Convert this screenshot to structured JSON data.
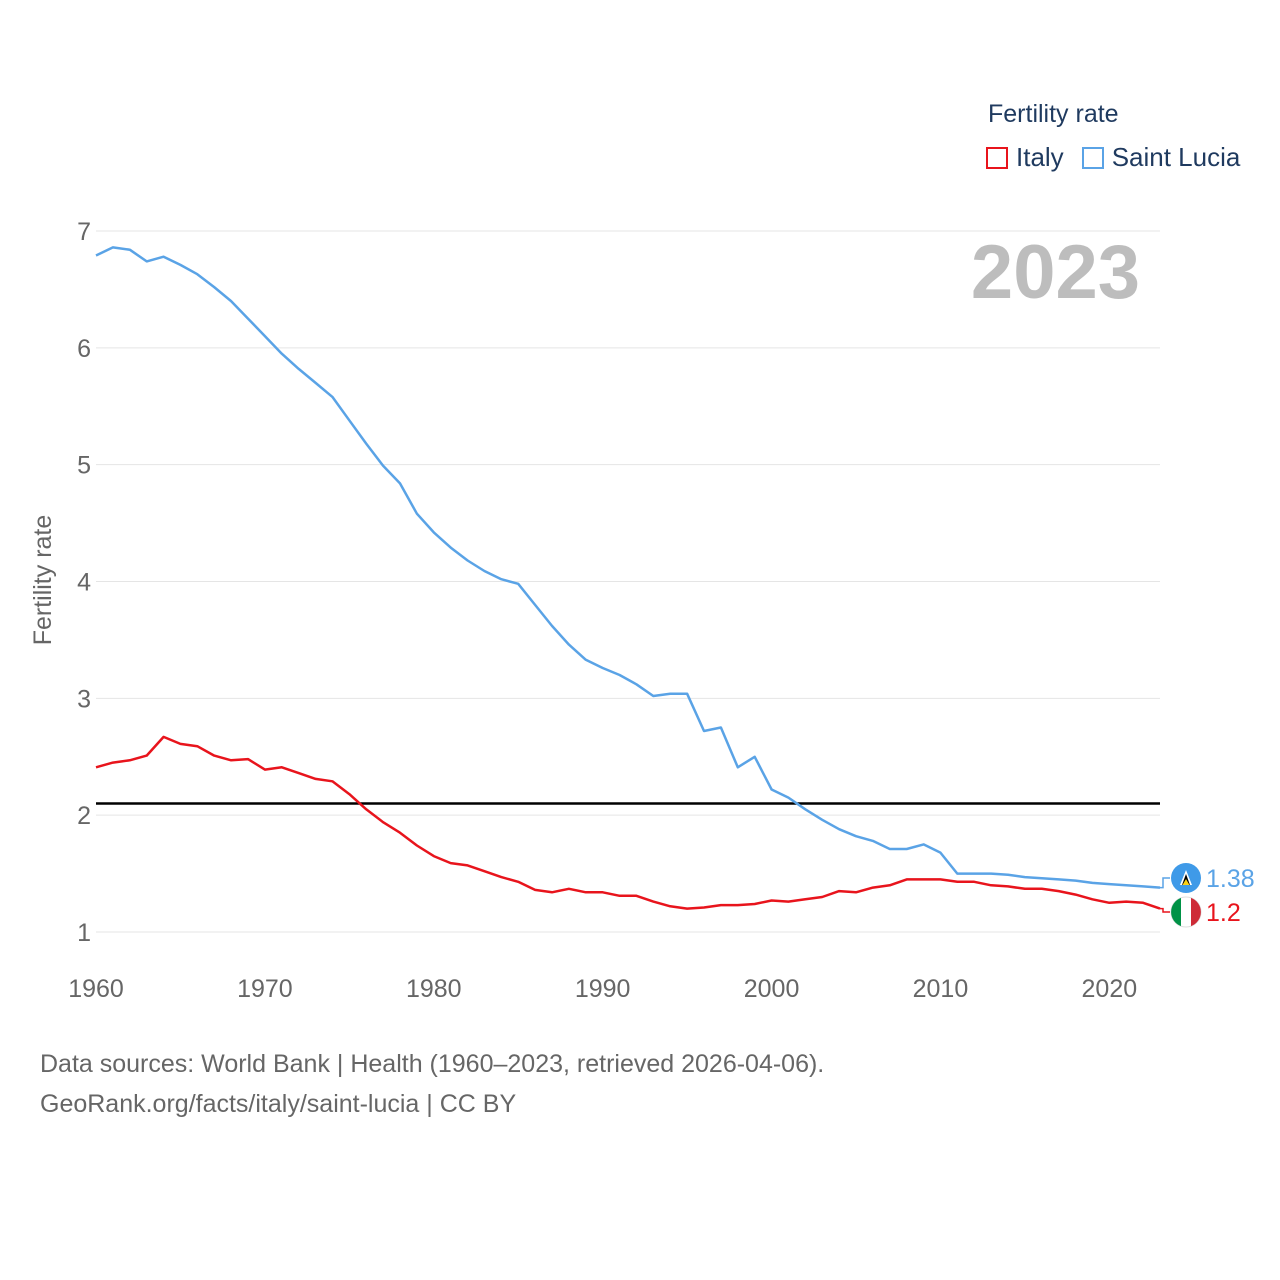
{
  "chart_data": {
    "type": "line",
    "title": "",
    "ylabel": "Fertility rate",
    "xlabel": "",
    "year_label": "2023",
    "xlim": [
      1960,
      2023
    ],
    "ylim": [
      1,
      7
    ],
    "xticks": [
      1960,
      1970,
      1980,
      1990,
      2000,
      2010,
      2020
    ],
    "yticks": [
      1,
      2,
      3,
      4,
      5,
      6,
      7
    ],
    "reference_line": 2.1,
    "legend": {
      "title": "Fertility rate",
      "position": "top-right"
    },
    "series": [
      {
        "name": "Italy",
        "color": "#e8141c",
        "end_label": "1.2",
        "flag": "italy-flag",
        "start_year": 1960,
        "values": [
          2.41,
          2.45,
          2.47,
          2.51,
          2.67,
          2.61,
          2.59,
          2.51,
          2.47,
          2.48,
          2.39,
          2.41,
          2.36,
          2.31,
          2.29,
          2.18,
          2.05,
          1.94,
          1.85,
          1.74,
          1.65,
          1.59,
          1.57,
          1.52,
          1.47,
          1.43,
          1.36,
          1.34,
          1.37,
          1.34,
          1.34,
          1.31,
          1.31,
          1.26,
          1.22,
          1.2,
          1.21,
          1.23,
          1.23,
          1.24,
          1.27,
          1.26,
          1.28,
          1.3,
          1.35,
          1.34,
          1.38,
          1.4,
          1.45,
          1.45,
          1.45,
          1.43,
          1.43,
          1.4,
          1.39,
          1.37,
          1.37,
          1.35,
          1.32,
          1.28,
          1.25,
          1.26,
          1.25,
          1.2
        ]
      },
      {
        "name": "Saint Lucia",
        "color": "#5aa3e6",
        "end_label": "1.38",
        "flag": "saint-lucia-flag",
        "start_year": 1960,
        "values": [
          6.79,
          6.86,
          6.84,
          6.74,
          6.78,
          6.71,
          6.63,
          6.52,
          6.4,
          6.25,
          6.1,
          5.95,
          5.82,
          5.7,
          5.58,
          5.38,
          5.18,
          4.99,
          4.84,
          4.58,
          4.42,
          4.29,
          4.18,
          4.09,
          4.02,
          3.98,
          3.8,
          3.62,
          3.46,
          3.33,
          3.26,
          3.2,
          3.12,
          3.02,
          3.04,
          3.04,
          2.72,
          2.75,
          2.41,
          2.5,
          2.22,
          2.15,
          2.05,
          1.96,
          1.88,
          1.82,
          1.78,
          1.71,
          1.71,
          1.75,
          1.68,
          1.5,
          1.5,
          1.5,
          1.49,
          1.47,
          1.46,
          1.45,
          1.44,
          1.42,
          1.41,
          1.4,
          1.39,
          1.38
        ]
      }
    ],
    "colors": {
      "grid": "#e5e5e5",
      "axis_text": "#666666",
      "reference": "#000000",
      "year": "#bdbdbd",
      "legend_text": "#1f3a5f"
    }
  },
  "footer": {
    "line1": "Data sources: World Bank | Health (1960–2023, retrieved 2026-04-06).",
    "line2": "GeoRank.org/facts/italy/saint-lucia | CC BY"
  }
}
